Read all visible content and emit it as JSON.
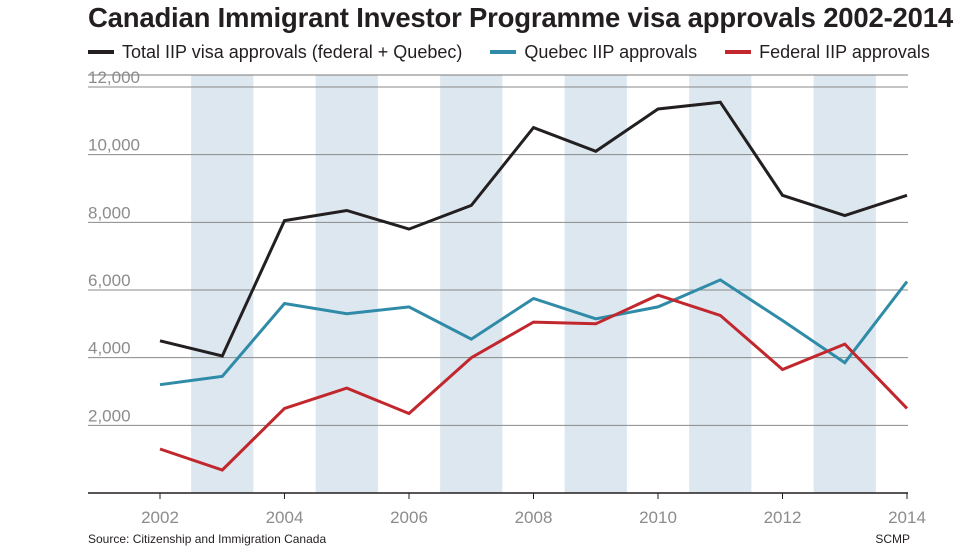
{
  "chart_data": {
    "type": "line",
    "title": "Canadian Immigrant Investor Programme visa approvals 2002-2014",
    "xlabel": "",
    "ylabel": "",
    "x": [
      2002,
      2003,
      2004,
      2005,
      2006,
      2007,
      2008,
      2009,
      2010,
      2011,
      2012,
      2013,
      2014
    ],
    "x_tick_labels": [
      "2002",
      "2004",
      "2006",
      "2008",
      "2010",
      "2012",
      "2014"
    ],
    "x_tick_values": [
      2002,
      2004,
      2006,
      2008,
      2010,
      2012,
      2014
    ],
    "y_tick_labels": [
      "2,000",
      "4,000",
      "6,000",
      "8,000",
      "10,000",
      "12,000"
    ],
    "y_tick_values": [
      2000,
      4000,
      6000,
      8000,
      10000,
      12000
    ],
    "ylim": [
      0,
      12000
    ],
    "xlim": [
      2002,
      2014
    ],
    "shaded_years": [
      2003,
      2005,
      2007,
      2009,
      2011,
      2013
    ],
    "shade_color": "#dce7f0",
    "grid": true,
    "legend_position": "top",
    "series": [
      {
        "name": "Total IIP visa approvals (federal + Quebec)",
        "color": "#231f20",
        "values": [
          4500,
          4050,
          8050,
          8350,
          7800,
          8500,
          10800,
          10100,
          11350,
          11550,
          8800,
          8200,
          8800
        ]
      },
      {
        "name": "Quebec IIP approvals",
        "color": "#2f8ba7",
        "values": [
          3200,
          3450,
          5600,
          5300,
          5500,
          4550,
          5750,
          5150,
          5500,
          6300,
          5100,
          3850,
          6250
        ]
      },
      {
        "name": "Federal IIP approvals",
        "color": "#c1272d",
        "values": [
          1300,
          680,
          2500,
          3100,
          2350,
          4000,
          5050,
          5000,
          5850,
          5250,
          3650,
          4400,
          2500
        ]
      }
    ]
  },
  "footer": {
    "source": "Source: Citizenship and Immigration Canada",
    "credit": "SCMP"
  }
}
